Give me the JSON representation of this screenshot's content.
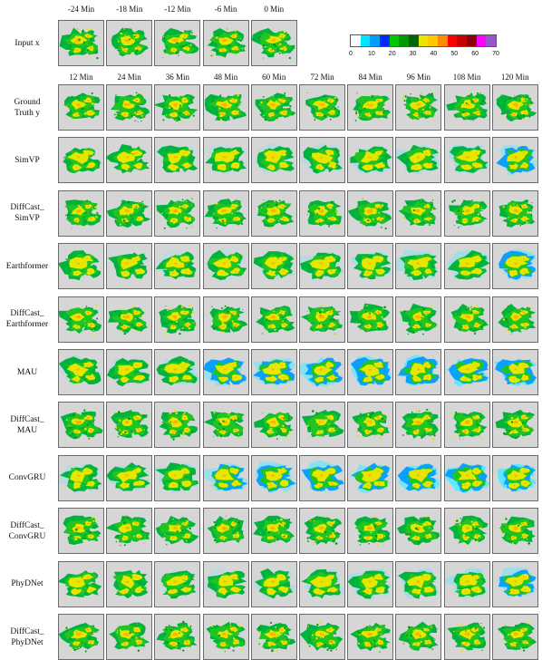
{
  "input_row": {
    "label": "Input x",
    "times": [
      "-24 Min",
      "-18 Min",
      "-12 Min",
      "-6 Min",
      "0 Min"
    ]
  },
  "output_times": [
    "12 Min",
    "24 Min",
    "36 Min",
    "48 Min",
    "60 Min",
    "72 Min",
    "84 Min",
    "96 Min",
    "108 Min",
    "120 Min"
  ],
  "rows": [
    {
      "label": [
        "Ground",
        "Truth y"
      ],
      "style": "truth"
    },
    {
      "label": [
        "SimVP"
      ],
      "style": "blur"
    },
    {
      "label": [
        "DiffCast_",
        "SimVP"
      ],
      "style": "sharp"
    },
    {
      "label": [
        "Earthformer"
      ],
      "style": "blur"
    },
    {
      "label": [
        "DiffCast_",
        "Earthformer"
      ],
      "style": "sharp"
    },
    {
      "label": [
        "MAU"
      ],
      "style": "blurblue"
    },
    {
      "label": [
        "DiffCast_",
        "MAU"
      ],
      "style": "sharp"
    },
    {
      "label": [
        "ConvGRU"
      ],
      "style": "blue"
    },
    {
      "label": [
        "DiffCast_",
        "ConvGRU"
      ],
      "style": "sharp"
    },
    {
      "label": [
        "PhyDNet"
      ],
      "style": "blur"
    },
    {
      "label": [
        "DiffCast_",
        "PhyDNet"
      ],
      "style": "sharp"
    }
  ],
  "colorbar": {
    "ticks": [
      "0",
      "10",
      "20",
      "30",
      "40",
      "50",
      "60",
      "70"
    ],
    "colors": [
      "#ffffff",
      "#00e5ff",
      "#009dff",
      "#0029ff",
      "#00c800",
      "#009900",
      "#006400",
      "#e6e600",
      "#ffc800",
      "#ff8c00",
      "#ff0000",
      "#c80000",
      "#8b0000",
      "#ff00ff",
      "#9955c9"
    ]
  }
}
